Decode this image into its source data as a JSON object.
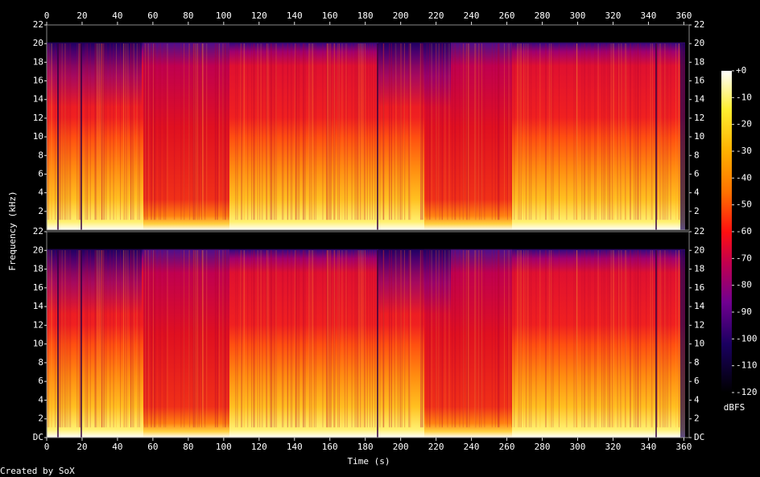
{
  "chart_data": {
    "type": "spectrogram",
    "x_label": "Time (s)",
    "y_label": "Frequency (kHz)",
    "xlim": [
      0,
      363
    ],
    "xticks": [
      0,
      20,
      40,
      60,
      80,
      100,
      120,
      140,
      160,
      180,
      200,
      220,
      240,
      260,
      280,
      300,
      320,
      340,
      360
    ],
    "panels": [
      {
        "ylim": [
          0,
          22
        ],
        "yticks": [
          2,
          4,
          6,
          8,
          10,
          12,
          14,
          16,
          18,
          20,
          22
        ]
      },
      {
        "ylim": [
          0,
          22
        ],
        "yticks": [
          {
            "value": 0,
            "label": "DC"
          },
          2,
          4,
          6,
          8,
          10,
          12,
          14,
          16,
          18,
          20,
          22
        ]
      }
    ],
    "colorbar": {
      "label": "dBFS",
      "lim": [
        -120,
        0
      ],
      "ticks": [
        {
          "value": 0,
          "label": "+0"
        },
        -10,
        -20,
        -30,
        -40,
        -50,
        -60,
        -70,
        -80,
        -90,
        -100,
        -110,
        -120
      ]
    },
    "footer": "Created by SoX"
  }
}
